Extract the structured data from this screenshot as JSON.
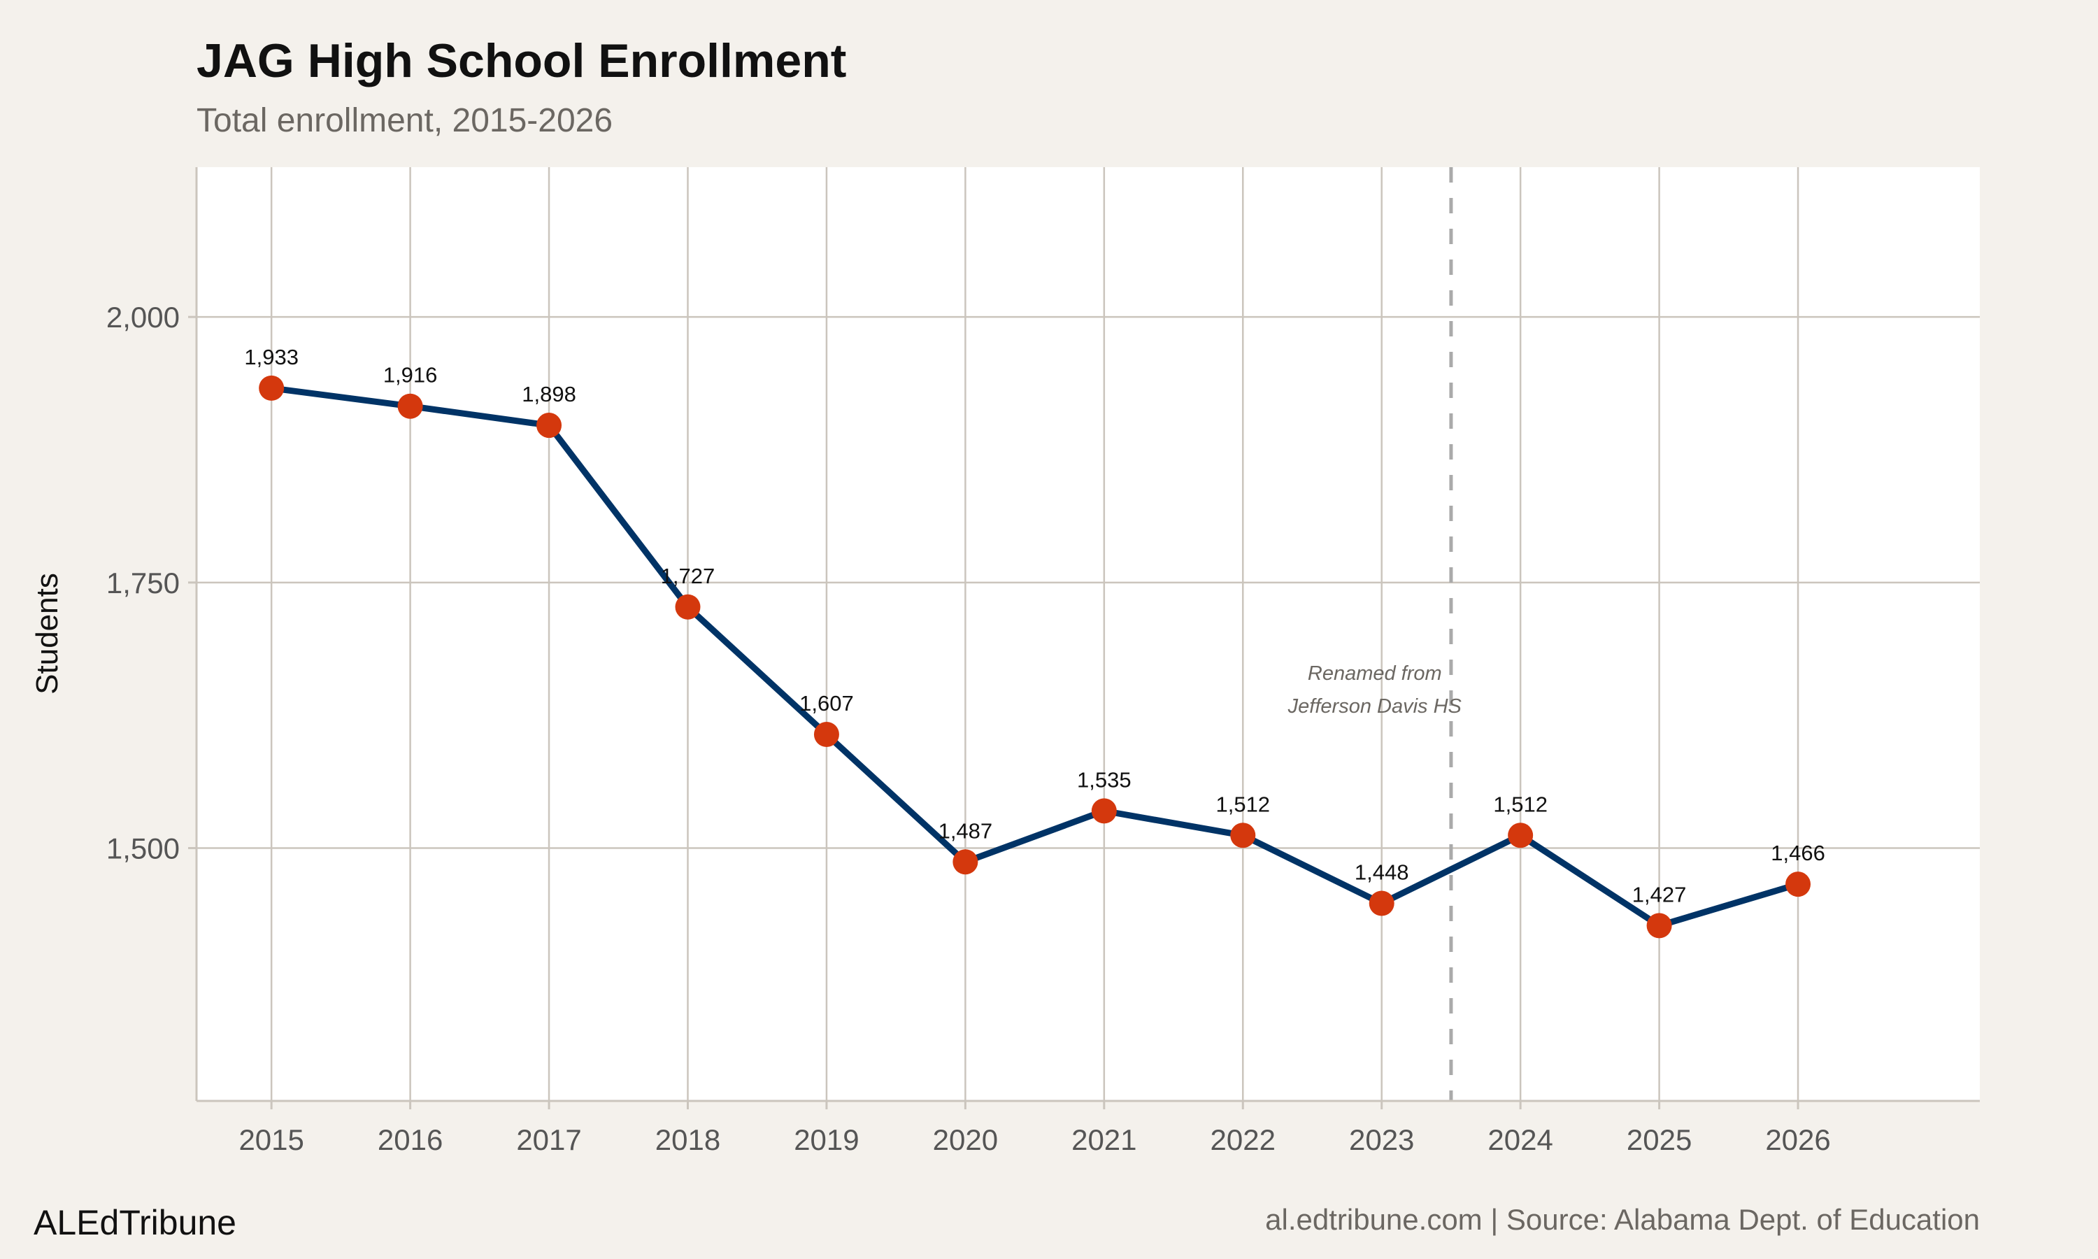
{
  "chart_data": {
    "type": "line",
    "title": "JAG High School Enrollment",
    "subtitle": "Total enrollment, 2015-2026",
    "xlabel": "",
    "ylabel": "Students",
    "x": [
      2015,
      2016,
      2017,
      2018,
      2019,
      2020,
      2021,
      2022,
      2023,
      2024,
      2025,
      2026
    ],
    "values": [
      1933,
      1916,
      1898,
      1727,
      1607,
      1487,
      1535,
      1512,
      1448,
      1512,
      1427,
      1466
    ],
    "data_labels": [
      "1,933",
      "1,916",
      "1,898",
      "1,727",
      "1,607",
      "1,487",
      "1,535",
      "1,512",
      "1,448",
      "1,512",
      "1,427",
      "1,466"
    ],
    "xticks": [
      "2015",
      "2016",
      "2017",
      "2018",
      "2019",
      "2020",
      "2021",
      "2022",
      "2023",
      "2024",
      "2025",
      "2026"
    ],
    "yticks": [
      {
        "value": 1500,
        "label": "1,500"
      },
      {
        "value": 1750,
        "label": "1,750"
      },
      {
        "value": 2000,
        "label": "2,000"
      }
    ],
    "xlim": [
      2014.46,
      2027.31
    ],
    "ylim": [
      1262,
      2141
    ],
    "grid": true,
    "annotation": {
      "x": 2023.5,
      "lines": [
        "Renamed from",
        "Jefferson Davis HS"
      ]
    },
    "colors": {
      "line": "#003366",
      "point": "#d4380d",
      "grid": "#cbc5bd",
      "background": "#f4f1ec",
      "panel": "#ffffff",
      "vline": "#aaaaaa"
    }
  },
  "footer": {
    "brand": "ALEdTribune",
    "source": "al.edtribune.com | Source: Alabama Dept. of Education"
  }
}
